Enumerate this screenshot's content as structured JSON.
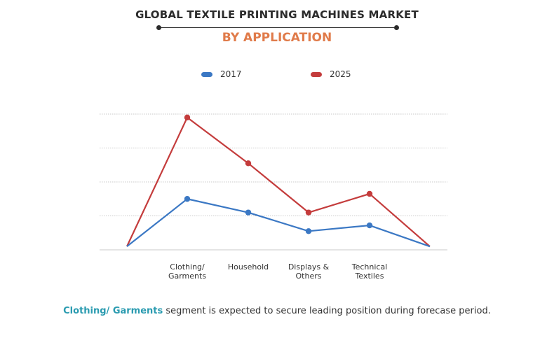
{
  "header": {
    "title": "GLOBAL TEXTILE PRINTING MACHINES MARKET",
    "subtitle": "BY APPLICATION"
  },
  "colors": {
    "title": "#2b2b2b",
    "subtitle": "#e07b4a",
    "series_2017": "#3b78c4",
    "series_2025": "#c43c3c",
    "grid": "#c8c8c8",
    "highlight": "#2a9bb0"
  },
  "chart_data": {
    "type": "line",
    "x": [
      "",
      "Clothing/\nGarments",
      "Household",
      "Displays &\nOthers",
      "Technical\nTextiles",
      ""
    ],
    "tick_labels": [
      "Clothing/\nGarments",
      "Household",
      "Displays &\nOthers",
      "Technical\nTextiles"
    ],
    "series": [
      {
        "name": "2017",
        "values": [
          0.1,
          1.5,
          1.1,
          0.55,
          0.72,
          0.1
        ]
      },
      {
        "name": "2025",
        "values": [
          0.1,
          3.9,
          2.55,
          1.1,
          1.65,
          0.1
        ]
      }
    ],
    "ylim": [
      0,
      4
    ],
    "grid": true,
    "legend": "top",
    "y_tick_labels_shown": false
  },
  "footer": {
    "highlight": "Clothing/ Garments",
    "text": " segment is expected to secure leading position during forecase period."
  }
}
